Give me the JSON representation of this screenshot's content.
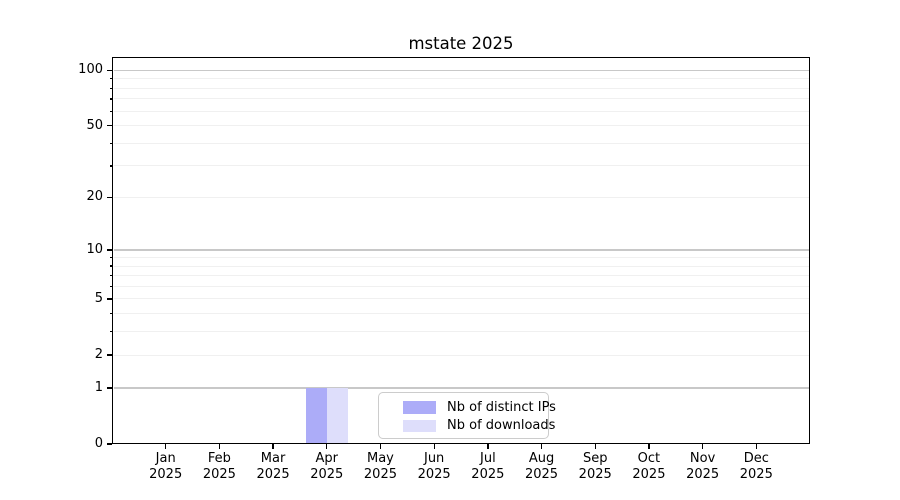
{
  "figure": {
    "title": "mstate 2025"
  },
  "chart_data": {
    "type": "bar",
    "title": "mstate 2025",
    "categories": [
      "Jan",
      "Feb",
      "Mar",
      "Apr",
      "May",
      "Jun",
      "Jul",
      "Aug",
      "Sep",
      "Oct",
      "Nov",
      "Dec"
    ],
    "x_year_label": "2025",
    "series": [
      {
        "name": "Nb of distinct IPs",
        "color": "#acacf8",
        "values": [
          0,
          0,
          0,
          1,
          0,
          0,
          0,
          0,
          0,
          0,
          0,
          0
        ]
      },
      {
        "name": "Nb of downloads",
        "color": "#dedefb",
        "values": [
          0,
          0,
          0,
          1,
          0,
          0,
          0,
          0,
          0,
          0,
          0,
          0
        ]
      }
    ],
    "yscale": "log1p",
    "ylim": [
      0,
      118
    ],
    "yticks": [
      0,
      1,
      2,
      5,
      10,
      20,
      50,
      100
    ],
    "minor_yticks": [
      3,
      4,
      6,
      7,
      8,
      9,
      30,
      40,
      60,
      70,
      80,
      90
    ],
    "gridlines": {
      "major_values": [
        1,
        10,
        100
      ],
      "minor_values": [
        2,
        3,
        4,
        5,
        6,
        7,
        8,
        9,
        20,
        30,
        40,
        50,
        60,
        70,
        80,
        90
      ],
      "major_color": "#c8c8c8",
      "minor_color": "#f0f0f0"
    },
    "grid": true,
    "legend_position": "lower center",
    "xlabel": "",
    "ylabel": ""
  }
}
